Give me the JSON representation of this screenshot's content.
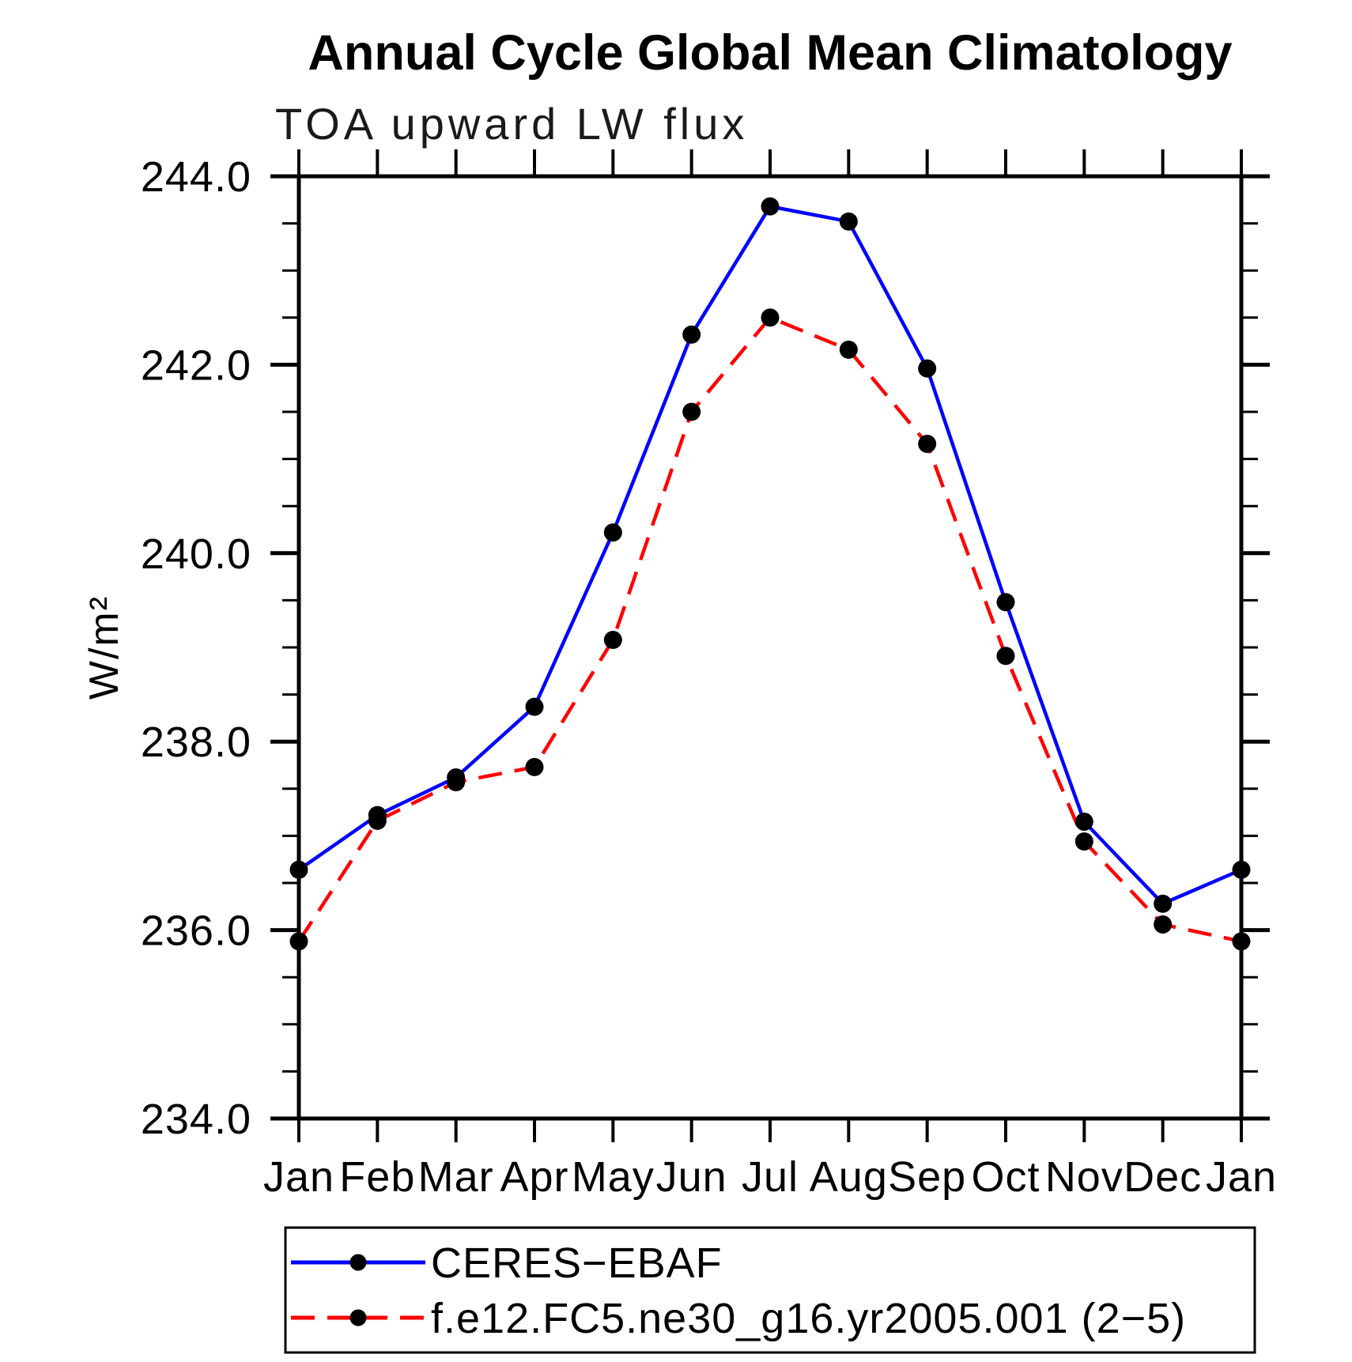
{
  "chart_data": {
    "type": "line",
    "title": "Annual Cycle Global Mean Climatology",
    "subtitle": "TOA upward LW flux",
    "ylabel": "W/m²",
    "categories": [
      "Jan",
      "Feb",
      "Mar",
      "Apr",
      "May",
      "Jun",
      "Jul",
      "Aug",
      "Sep",
      "Oct",
      "Nov",
      "Dec",
      "Jan"
    ],
    "series": [
      {
        "name": "CERES−EBAF",
        "color": "#0000ff",
        "line_style": "solid",
        "marker": "black-dot",
        "values": [
          236.64,
          237.22,
          237.62,
          238.37,
          240.22,
          242.32,
          243.68,
          243.52,
          241.96,
          239.48,
          237.15,
          236.28,
          236.64
        ]
      },
      {
        "name": "f.e12.FC5.ne30_g16.yr2005.001 (2−5)",
        "color": "#ff0000",
        "line_style": "dashed",
        "marker": "black-dot",
        "values": [
          235.88,
          237.16,
          237.57,
          237.73,
          239.08,
          241.5,
          242.5,
          242.16,
          241.16,
          238.91,
          236.94,
          236.06,
          235.88
        ]
      }
    ],
    "ylim": [
      234.0,
      244.0
    ],
    "yticks": {
      "major": [
        244.0,
        242.0,
        240.0,
        238.0,
        236.0,
        234.0
      ],
      "labels": [
        "244.0",
        "242.0",
        "240.0",
        "238.0",
        "236.0",
        "234.0"
      ],
      "minor_step": 0.5
    },
    "grid": false,
    "legend_position": "bottom-left",
    "marker_color": "#000000",
    "axis_color": "#000000",
    "background_color": "#ffffff"
  }
}
